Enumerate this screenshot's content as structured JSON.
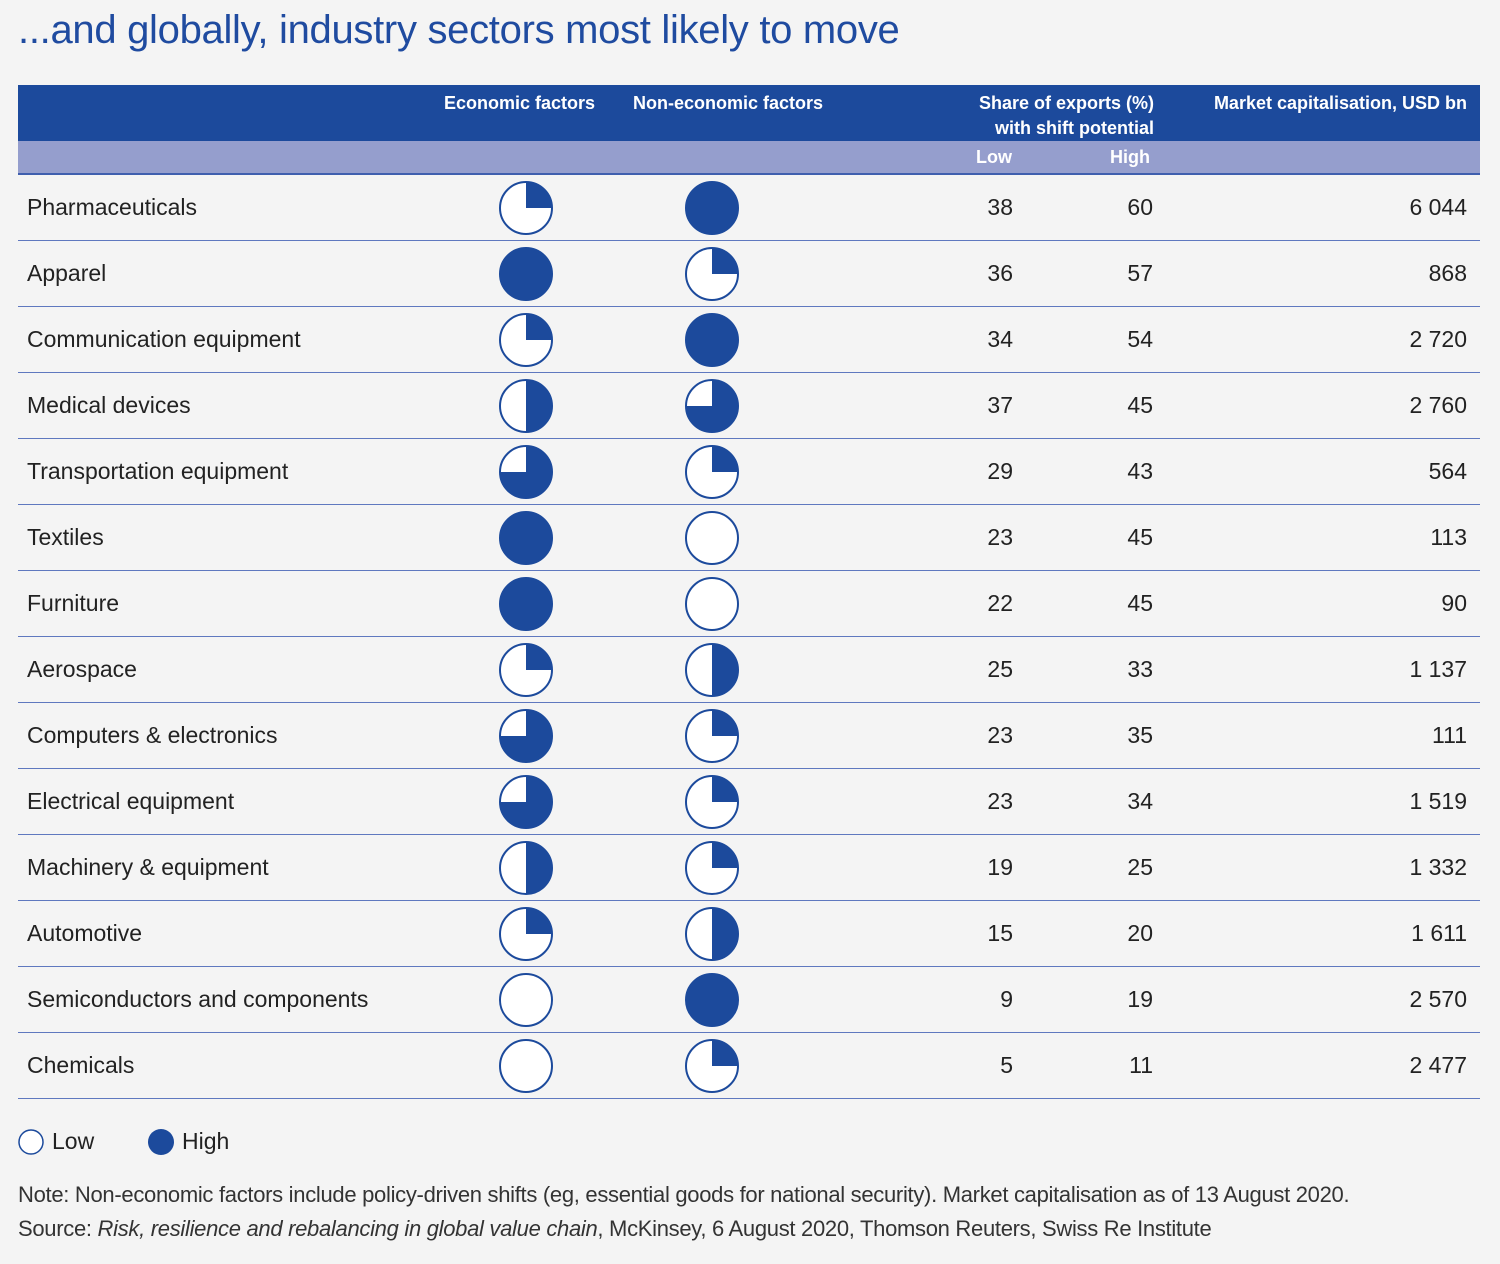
{
  "chart_data": {
    "type": "table",
    "title": "...and globally, industry sectors most likely to move",
    "columns": {
      "economic": "Economic factors",
      "non_economic": "Non-economic factors",
      "share_line1": "Share of exports (%)",
      "share_line2": "with shift potential",
      "low": "Low",
      "high": "High",
      "market_cap": "Market capitalisation, USD bn"
    },
    "rows": [
      {
        "sector": "Pharmaceuticals",
        "economic": 0.25,
        "non_economic": 1,
        "low": "38",
        "high": "60",
        "market_cap": "6 044"
      },
      {
        "sector": "Apparel",
        "economic": 1,
        "non_economic": 0.25,
        "low": "36",
        "high": "57",
        "market_cap": "868"
      },
      {
        "sector": "Communication equipment",
        "economic": 0.25,
        "non_economic": 1,
        "low": "34",
        "high": "54",
        "market_cap": "2 720"
      },
      {
        "sector": "Medical devices",
        "economic": 0.5,
        "non_economic": 0.75,
        "low": "37",
        "high": "45",
        "market_cap": "2 760"
      },
      {
        "sector": "Transportation equipment",
        "economic": 0.75,
        "non_economic": 0.25,
        "low": "29",
        "high": "43",
        "market_cap": "564"
      },
      {
        "sector": "Textiles",
        "economic": 1,
        "non_economic": 0,
        "low": "23",
        "high": "45",
        "market_cap": "113"
      },
      {
        "sector": "Furniture",
        "economic": 1,
        "non_economic": 0,
        "low": "22",
        "high": "45",
        "market_cap": "90"
      },
      {
        "sector": "Aerospace",
        "economic": 0.25,
        "non_economic": 0.5,
        "low": "25",
        "high": "33",
        "market_cap": "1 137"
      },
      {
        "sector": "Computers & electronics",
        "economic": 0.75,
        "non_economic": 0.25,
        "low": "23",
        "high": "35",
        "market_cap": "111"
      },
      {
        "sector": "Electrical equipment",
        "economic": 0.75,
        "non_economic": 0.25,
        "low": "23",
        "high": "34",
        "market_cap": "1 519"
      },
      {
        "sector": "Machinery & equipment",
        "economic": 0.5,
        "non_economic": 0.25,
        "low": "19",
        "high": "25",
        "market_cap": "1 332"
      },
      {
        "sector": "Automotive",
        "economic": 0.25,
        "non_economic": 0.5,
        "low": "15",
        "high": "20",
        "market_cap": "1 611"
      },
      {
        "sector": "Semiconductors and components",
        "economic": 0,
        "non_economic": 1,
        "low": "9",
        "high": "19",
        "market_cap": "2 570"
      },
      {
        "sector": "Chemicals",
        "economic": 0,
        "non_economic": 0.25,
        "low": "5",
        "high": "11",
        "market_cap": "2 477"
      }
    ],
    "legend": {
      "low": "Low",
      "high": "High"
    },
    "note": "Note: Non-economic factors include policy-driven shifts (eg, essential goods for national security). Market capitalisation as of 13 August 2020.",
    "source_prefix": "Source: ",
    "source_title": "Risk, resilience and rebalancing in global value chain",
    "source_rest": ", McKinsey, 6 August 2020, Thomson Reuters, Swiss Re Institute"
  },
  "colors": {
    "primary": "#1c4a9c",
    "subheader": "#959ecd",
    "background": "#f4f4f4"
  }
}
